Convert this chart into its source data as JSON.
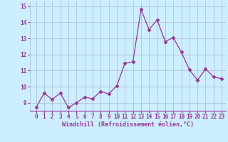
{
  "x": [
    0,
    1,
    2,
    3,
    4,
    5,
    6,
    7,
    8,
    9,
    10,
    11,
    12,
    13,
    14,
    15,
    16,
    17,
    18,
    19,
    20,
    21,
    22,
    23
  ],
  "y": [
    8.7,
    9.6,
    9.2,
    9.6,
    8.7,
    9.0,
    9.35,
    9.25,
    9.7,
    9.55,
    10.05,
    11.45,
    11.55,
    14.8,
    13.55,
    14.15,
    12.8,
    13.05,
    12.15,
    11.05,
    10.4,
    11.1,
    10.6,
    10.5
  ],
  "line_color": "#993399",
  "marker": "D",
  "markersize": 2.5,
  "linewidth": 0.9,
  "ylim": [
    8.5,
    15.3
  ],
  "yticks": [
    9,
    10,
    11,
    12,
    13,
    14,
    15
  ],
  "xlabel": "Windchill (Refroidissement éolien,°C)",
  "bg_color": "#cceeff",
  "grid_color": "#aabbcc",
  "tick_color": "#993399",
  "label_color": "#993399",
  "tick_fontsize": 5.5,
  "xlabel_fontsize": 6.0
}
